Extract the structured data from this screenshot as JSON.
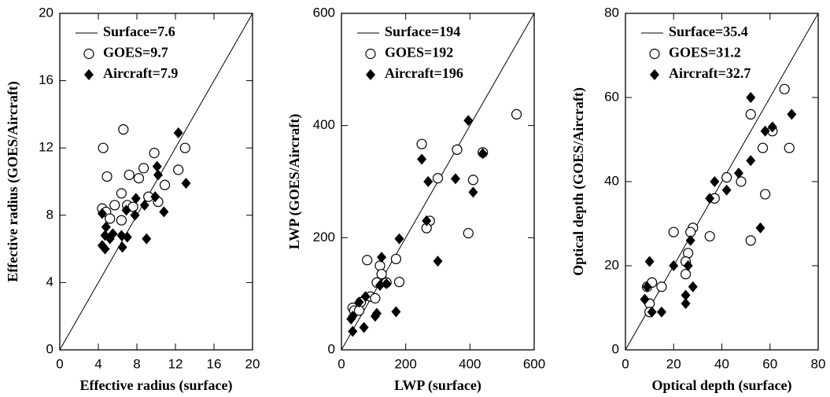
{
  "chart_data": [
    {
      "type": "scatter",
      "xlabel": "Effective radius (surface)",
      "ylabel": "Effective radius (GOES/Aircraft)",
      "xlim": [
        0,
        20
      ],
      "ylim": [
        0,
        20
      ],
      "xticks": [
        0,
        4,
        8,
        12,
        16,
        20
      ],
      "yticks": [
        0,
        4,
        8,
        12,
        16,
        20
      ],
      "series": [
        {
          "name": "Surface=7.6",
          "marker": "line",
          "color": "#000000",
          "x": [
            0,
            20
          ],
          "values": [
            0,
            20
          ]
        },
        {
          "name": "GOES=9.7",
          "marker": "circle",
          "color": "#000000",
          "x": [
            4.5,
            6.6,
            4.9,
            7.2,
            8.2,
            8.7,
            9.8,
            13.0,
            12.3,
            10.9,
            9.2,
            10.2,
            6.4,
            7.0,
            5.7,
            4.4,
            4.8,
            5.2,
            6.4,
            7.6
          ],
          "values": [
            12.0,
            13.1,
            10.3,
            10.4,
            10.2,
            10.8,
            11.7,
            12.0,
            10.7,
            9.8,
            9.1,
            8.8,
            9.3,
            8.6,
            8.6,
            8.4,
            8.2,
            7.8,
            7.7,
            8.5
          ]
        },
        {
          "name": "Aircraft=7.9",
          "marker": "diamond",
          "color": "#000000",
          "x": [
            12.3,
            10.1,
            10.2,
            13.1,
            9.9,
            7.9,
            8.8,
            6.9,
            10.8,
            4.4,
            7.8,
            4.8,
            4.7,
            5.5,
            6.4,
            5.2,
            7.0,
            9.0,
            4.4,
            4.7,
            6.5
          ],
          "values": [
            12.9,
            10.9,
            10.4,
            9.9,
            9.1,
            9.0,
            8.6,
            8.3,
            8.2,
            8.1,
            8.0,
            7.3,
            6.8,
            6.9,
            6.8,
            6.6,
            6.7,
            6.6,
            6.2,
            6.0,
            6.1
          ]
        }
      ]
    },
    {
      "type": "scatter",
      "xlabel": "LWP (surface)",
      "ylabel": "LWP (GOES/Aircraft)",
      "xlim": [
        0,
        600
      ],
      "ylim": [
        0,
        600
      ],
      "xticks": [
        0,
        200,
        400,
        600
      ],
      "yticks": [
        0,
        200,
        400,
        600
      ],
      "series": [
        {
          "name": "Surface=194",
          "marker": "line",
          "color": "#000000",
          "x": [
            0,
            600
          ],
          "values": [
            0,
            600
          ]
        },
        {
          "name": "GOES=192",
          "marker": "circle",
          "color": "#000000",
          "x": [
            545,
            250,
            360,
            440,
            410,
            300,
            395,
            275,
            265,
            170,
            180,
            80,
            110,
            120,
            125,
            140,
            90,
            105,
            60,
            35,
            40,
            55
          ],
          "values": [
            420,
            367,
            357,
            352,
            303,
            306,
            208,
            230,
            217,
            162,
            121,
            160,
            120,
            150,
            135,
            120,
            95,
            92,
            85,
            75,
            70,
            70
          ]
        },
        {
          "name": "Aircraft=196",
          "marker": "diamond",
          "color": "#000000",
          "x": [
            395,
            440,
            250,
            270,
            355,
            410,
            265,
            300,
            180,
            125,
            120,
            140,
            75,
            110,
            105,
            170,
            55,
            35,
            30,
            70,
            35
          ],
          "values": [
            409,
            350,
            340,
            300,
            305,
            281,
            230,
            158,
            198,
            165,
            115,
            118,
            95,
            65,
            60,
            68,
            85,
            60,
            55,
            40,
            33
          ]
        }
      ]
    },
    {
      "type": "scatter",
      "xlabel": "Optical depth (surface)",
      "ylabel": "Optical depth (GOES/Aircraft)",
      "xlim": [
        0,
        80
      ],
      "ylim": [
        0,
        80
      ],
      "xticks": [
        0,
        20,
        40,
        60,
        80
      ],
      "yticks": [
        0,
        20,
        40,
        60,
        80
      ],
      "series": [
        {
          "name": "Surface=35.4",
          "marker": "line",
          "color": "#000000",
          "x": [
            0,
            80
          ],
          "values": [
            0,
            80
          ]
        },
        {
          "name": "GOES=31.2",
          "marker": "circle",
          "color": "#000000",
          "x": [
            66,
            52,
            61,
            57,
            68,
            48,
            42,
            37,
            35,
            58,
            52,
            20,
            28,
            27,
            26,
            25,
            25,
            15,
            9,
            11,
            10,
            10
          ],
          "values": [
            62,
            56,
            52,
            48,
            48,
            40,
            41,
            36,
            27,
            37,
            26,
            28,
            29,
            28,
            23,
            21,
            18,
            15,
            15,
            16,
            11,
            9
          ]
        },
        {
          "name": "Aircraft=32.7",
          "marker": "diamond",
          "color": "#000000",
          "x": [
            52,
            69,
            61,
            58,
            52,
            47,
            37,
            42,
            35,
            27,
            26,
            56,
            28,
            25,
            25,
            20,
            10,
            9,
            8,
            11,
            15
          ],
          "values": [
            60,
            56,
            53,
            52,
            45,
            42,
            40,
            38,
            36,
            26,
            20,
            29,
            15,
            13,
            11,
            20,
            21,
            15,
            12,
            9,
            9
          ]
        }
      ]
    }
  ]
}
